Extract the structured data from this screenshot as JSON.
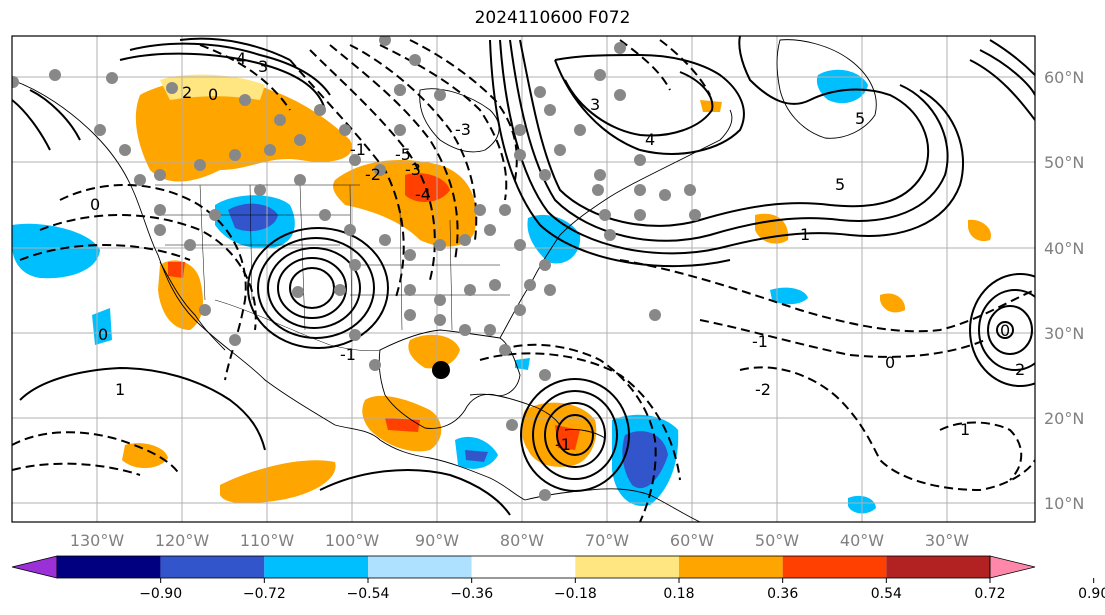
{
  "title": "2024110600 F072",
  "longitude_labels": [
    "130°W",
    "120°W",
    "110°W",
    "100°W",
    "90°W",
    "80°W",
    "70°W",
    "60°W",
    "50°W",
    "40°W",
    "30°W"
  ],
  "latitude_labels": [
    "60°N",
    "50°N",
    "40°N",
    "30°N",
    "20°N",
    "10°N"
  ],
  "colorbar": {
    "tick_labels": [
      "−0.90",
      "−0.72",
      "−0.54",
      "−0.36",
      "−0.18",
      "0.18",
      "0.36",
      "0.54",
      "0.72",
      "0.90"
    ],
    "colors": [
      "#9b30d9",
      "#000080",
      "#3355cc",
      "#00bfff",
      "#aee0ff",
      "#ffffff",
      "#ffe680",
      "#ffa500",
      "#ff4000",
      "#b22222",
      "#ff88aa"
    ]
  },
  "contour_labels": [
    "4",
    "3",
    "2",
    "0",
    "-1",
    "-2",
    "-3",
    "-4",
    "-5",
    "5",
    "1",
    "2",
    "-1",
    "0",
    "-2",
    "-1",
    "0",
    "1",
    "0",
    "-1",
    "0",
    "1",
    "4",
    "3",
    "-3",
    "5"
  ],
  "colors": {
    "grid": "#b0b0b0",
    "land": "#000000",
    "ocean": "#ffffff"
  }
}
